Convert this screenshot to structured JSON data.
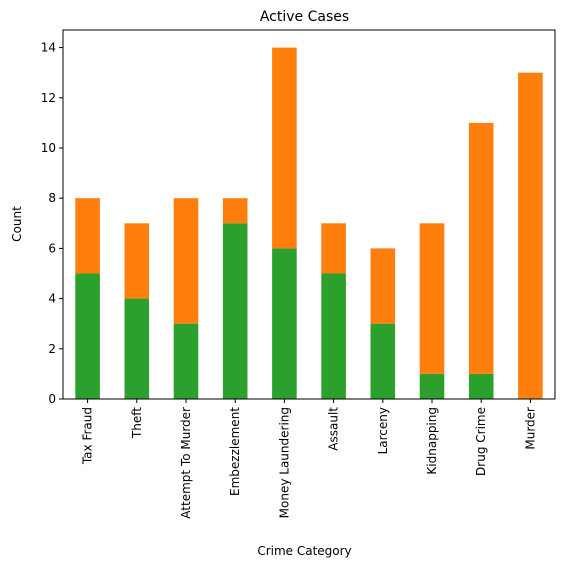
{
  "chart_data": {
    "type": "bar",
    "stacked": true,
    "title": "Active Cases",
    "xlabel": "Crime Category",
    "ylabel": "Count",
    "categories": [
      "Tax Fraud",
      "Theft",
      "Attempt To Murder",
      "Embezzlement",
      "Money Laundering",
      "Assault",
      "Larceny",
      "Kidnapping",
      "Drug Crime",
      "Murder"
    ],
    "series": [
      {
        "color": "#2ca02c",
        "values": [
          5,
          4,
          3,
          7,
          6,
          5,
          3,
          1,
          1,
          0
        ]
      },
      {
        "color": "#ff7f0e",
        "values": [
          3,
          3,
          5,
          1,
          8,
          2,
          3,
          6,
          10,
          13
        ]
      }
    ],
    "ylim": [
      0,
      14.7
    ],
    "yticks": [
      0,
      2,
      4,
      6,
      8,
      10,
      12,
      14
    ],
    "grid": false,
    "legend": "none"
  }
}
